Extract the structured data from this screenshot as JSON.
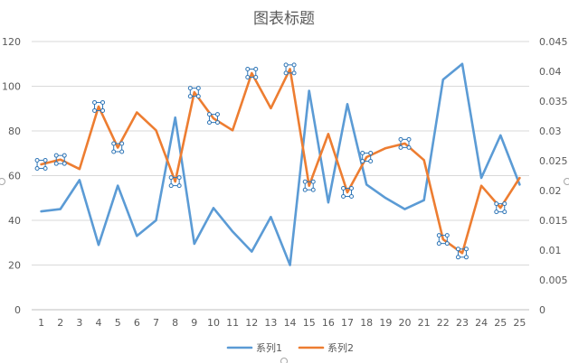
{
  "chart_data": {
    "type": "line",
    "title": "图表标题",
    "categories": [
      "1",
      "2",
      "3",
      "4",
      "5",
      "6",
      "7",
      "8",
      "9",
      "10",
      "11",
      "12",
      "13",
      "14",
      "15",
      "16",
      "17",
      "18",
      "19",
      "20",
      "21",
      "22",
      "23",
      "24",
      "25",
      "25"
    ],
    "y_left": {
      "lim": [
        0,
        120
      ],
      "ticks": [
        "0",
        "20",
        "40",
        "60",
        "80",
        "100",
        "120"
      ]
    },
    "y_right": {
      "lim": [
        0,
        0.045
      ],
      "ticks": [
        "0",
        "0.005",
        "0.01",
        "0.015",
        "0.02",
        "0.025",
        "0.03",
        "0.035",
        "0.04",
        "0.045"
      ]
    },
    "series": [
      {
        "name": "系列1",
        "axis": "left",
        "color": "#5B9BD5",
        "values": [
          44,
          45,
          58,
          29,
          55.5,
          33,
          40,
          86,
          29.5,
          45.5,
          35,
          26,
          41.5,
          20,
          98,
          48,
          92,
          56,
          50,
          45,
          49,
          103,
          110,
          59,
          78,
          56
        ]
      },
      {
        "name": "系列2",
        "axis": "right",
        "color": "#ED7D31",
        "values": [
          0.0244,
          0.0252,
          0.0236,
          0.0341,
          0.0272,
          0.0331,
          0.0301,
          0.0215,
          0.0365,
          0.0321,
          0.0301,
          0.0397,
          0.0338,
          0.0404,
          0.0208,
          0.0295,
          0.0197,
          0.0256,
          0.0271,
          0.0279,
          0.0251,
          0.0118,
          0.0095,
          0.0208,
          0.0171,
          0.0221
        ]
      }
    ],
    "marked_points": [
      0,
      1,
      3,
      4,
      7,
      8,
      9,
      11,
      13,
      14,
      16,
      17,
      19,
      21,
      22,
      24
    ],
    "grid": true,
    "legend_position": "bottom"
  }
}
